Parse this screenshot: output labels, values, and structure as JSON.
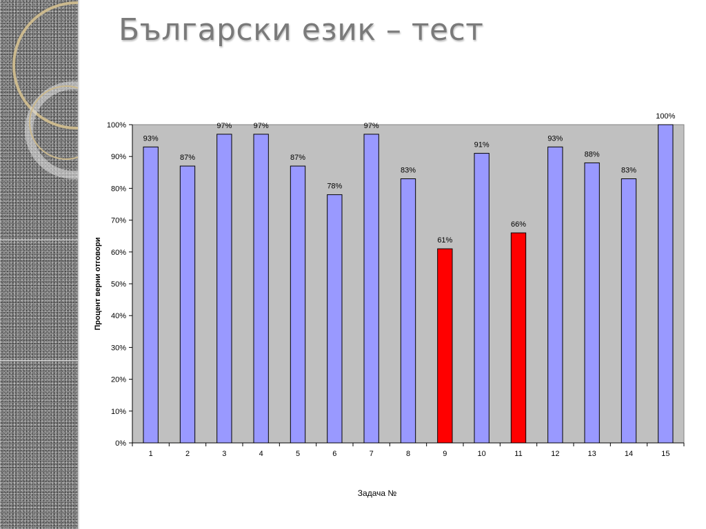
{
  "slide": {
    "title": "Български език – тест"
  },
  "chart_data": {
    "type": "bar",
    "title": "",
    "xlabel": "Задача №",
    "ylabel": "Процент верни отговори",
    "ylim": [
      0,
      100
    ],
    "yticks": [
      0,
      10,
      20,
      30,
      40,
      50,
      60,
      70,
      80,
      90,
      100
    ],
    "ytick_labels": [
      "0%",
      "10%",
      "20%",
      "30%",
      "40%",
      "50%",
      "60%",
      "70%",
      "80%",
      "90%",
      "100%"
    ],
    "categories": [
      "1",
      "2",
      "3",
      "4",
      "5",
      "6",
      "7",
      "8",
      "9",
      "10",
      "11",
      "12",
      "13",
      "14",
      "15"
    ],
    "values": [
      93,
      87,
      97,
      97,
      87,
      78,
      97,
      83,
      61,
      91,
      66,
      93,
      88,
      83,
      100
    ],
    "labels": [
      "93%",
      "87%",
      "97%",
      "97%",
      "87%",
      "78%",
      "97%",
      "83%",
      "61%",
      "91%",
      "66%",
      "93%",
      "88%",
      "83%",
      "100%"
    ],
    "highlighted": [
      "9",
      "11"
    ],
    "colors": {
      "bar": "#9999ff",
      "bar_highlight": "#ff0000",
      "plot_background": "#c0c0c0",
      "bar_outline": "#000000"
    },
    "grid": false,
    "legend": "none"
  }
}
